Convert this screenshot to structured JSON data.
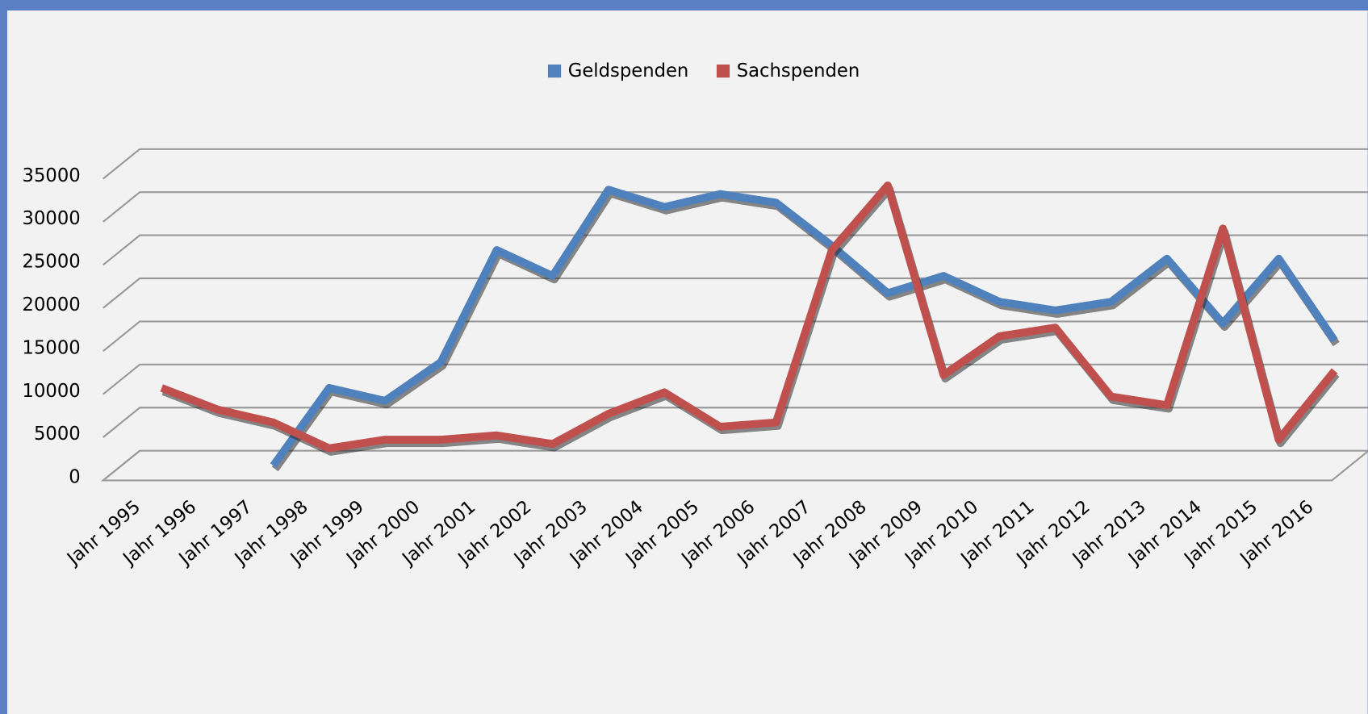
{
  "chart_data": {
    "type": "line",
    "categories": [
      "Jahr 1995",
      "Jahr 1996",
      "Jahr 1997",
      "Jahr 1998",
      "Jahr 1999",
      "Jahr 2000",
      "Jahr 2001",
      "Jahr 2002",
      "Jahr 2003",
      "Jahr 2004",
      "Jahr 2005",
      "Jahr 2006",
      "Jahr 2007",
      "Jahr 2008",
      "Jahr 2009",
      "Jahr 2010",
      "Jahr 2011",
      "Jahr 2012",
      "Jahr 2013",
      "Jahr 2014",
      "Jahr 2015",
      "Jahr 2016"
    ],
    "series": [
      {
        "name": "Geldspenden",
        "color": "#4f81bd",
        "values": [
          null,
          null,
          0,
          9000,
          7500,
          12000,
          25000,
          22000,
          32000,
          30000,
          31500,
          30500,
          25500,
          20000,
          22000,
          19000,
          18000,
          19000,
          24000,
          16500,
          24000,
          14500
        ]
      },
      {
        "name": "Sachspenden",
        "color": "#c0504d",
        "values": [
          9000,
          6500,
          5000,
          2000,
          3000,
          3000,
          3500,
          2500,
          6000,
          8500,
          4500,
          5000,
          25000,
          32500,
          10500,
          15000,
          16000,
          8000,
          7000,
          27500,
          3000,
          11000
        ]
      }
    ],
    "ylim": [
      0,
      35000
    ],
    "yticks": [
      0,
      5000,
      10000,
      15000,
      20000,
      25000,
      30000,
      35000
    ],
    "grid": true,
    "legend": "top"
  }
}
